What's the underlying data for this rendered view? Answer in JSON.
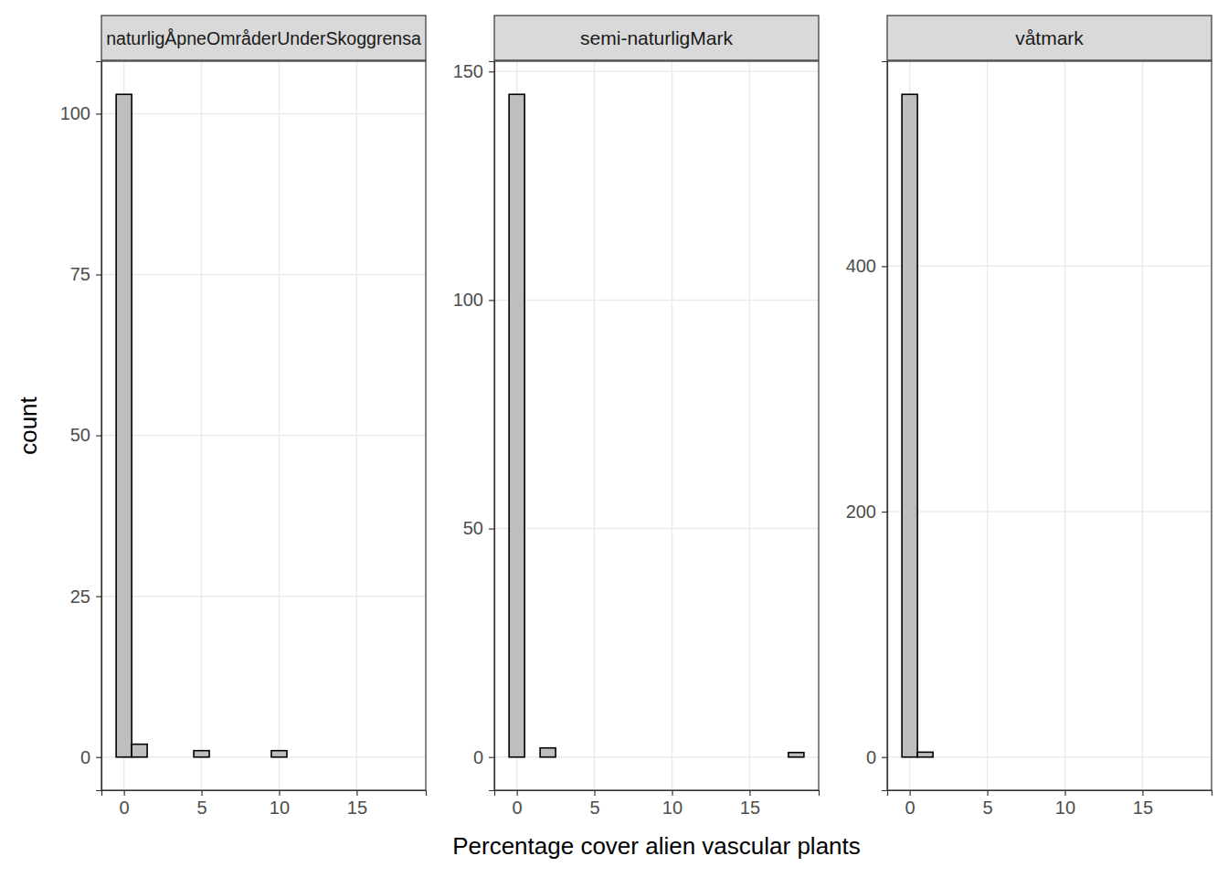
{
  "chart_data": [
    {
      "type": "histogram",
      "title": "naturligÅpneOmråderUnderSkoggrensa",
      "ylabel": "count",
      "bins": [
        -0.5,
        0.5,
        1.5,
        2.5,
        3.5,
        4.5,
        5.5,
        6.5,
        7.5,
        8.5,
        9.5,
        10.5,
        11.5,
        12.5,
        13.5,
        14.5,
        15.5,
        16.5,
        17.5,
        18.5
      ],
      "counts": [
        103,
        2,
        0,
        0,
        0,
        1,
        0,
        0,
        0,
        0,
        1,
        0,
        0,
        0,
        0,
        0,
        0,
        0,
        0
      ],
      "color": "#bebebe",
      "xlim": [
        -1.45,
        19.45
      ],
      "xticks": [
        0,
        5,
        10,
        15
      ],
      "ylim": [
        -5.15,
        108.15
      ],
      "yticks": [
        0,
        25,
        50,
        75,
        100
      ],
      "grid": true
    },
    {
      "type": "histogram",
      "title": "semi-naturligMark",
      "xlabel": "Percentage cover alien vascular plants",
      "bins": [
        -0.5,
        0.5,
        1.5,
        2.5,
        3.5,
        4.5,
        5.5,
        6.5,
        7.5,
        8.5,
        9.5,
        10.5,
        11.5,
        12.5,
        13.5,
        14.5,
        15.5,
        16.5,
        17.5,
        18.5
      ],
      "counts": [
        145,
        0,
        2,
        0,
        0,
        0,
        0,
        0,
        0,
        0,
        0,
        0,
        0,
        0,
        0,
        0,
        0,
        0,
        1
      ],
      "color": "#bebebe",
      "xlim": [
        -1.45,
        19.45
      ],
      "xticks": [
        0,
        5,
        10,
        15
      ],
      "ylim": [
        -7.25,
        152.25
      ],
      "yticks": [
        0,
        50,
        100,
        150
      ],
      "grid": true
    },
    {
      "type": "histogram",
      "title": "våtmark",
      "bins": [
        -0.5,
        0.5,
        1.5,
        2.5,
        3.5,
        4.5,
        5.5,
        6.5,
        7.5,
        8.5,
        9.5,
        10.5,
        11.5,
        12.5,
        13.5,
        14.5,
        15.5,
        16.5,
        17.5,
        18.5
      ],
      "counts": [
        540,
        4,
        0,
        0,
        0,
        0,
        0,
        0,
        0,
        0,
        0,
        0,
        0,
        0,
        0,
        0,
        0,
        0,
        0
      ],
      "color": "#bebebe",
      "xlim": [
        -1.45,
        19.45
      ],
      "xticks": [
        0,
        5,
        10,
        15
      ],
      "ylim": [
        -27,
        567
      ],
      "yticks": [
        0,
        200,
        400
      ],
      "grid": true
    }
  ]
}
